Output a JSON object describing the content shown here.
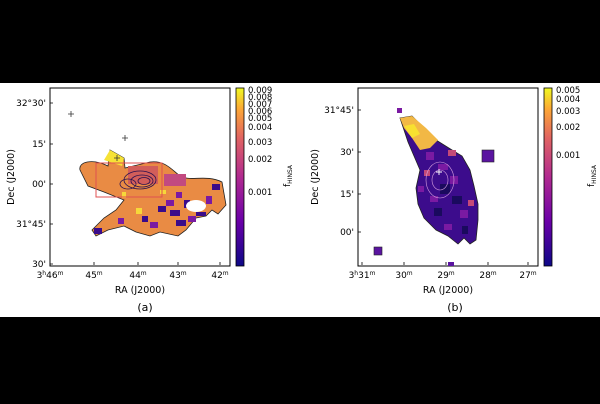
{
  "chart_data": [
    {
      "type": "heatmap",
      "panel_label": "(a)",
      "xlabel": "RA (J2000)",
      "ylabel": "Dec (J2000)",
      "x_ticks": [
        "3h46m",
        "45m",
        "44m",
        "43m",
        "42m"
      ],
      "y_ticks": [
        "32°30'",
        "15'",
        "00'",
        "31°45'",
        "30'"
      ],
      "colorbar": {
        "label": "f_HINSA",
        "ticks": [
          "0.009",
          "0.008",
          "0.007",
          "0.006",
          "0.005",
          "0.004",
          "0.003",
          "0.002",
          "0.001"
        ],
        "scale": "log",
        "colormap": "plasma"
      },
      "markers": [
        "+",
        "+",
        "+"
      ],
      "overlay": "red rectangle with black contour lines"
    },
    {
      "type": "heatmap",
      "panel_label": "(b)",
      "xlabel": "RA (J2000)",
      "ylabel": "Dec (J2000)",
      "x_ticks": [
        "3h31m",
        "30m",
        "29m",
        "28m",
        "27m"
      ],
      "y_ticks": [
        "31°45'",
        "30'",
        "15'",
        "00'"
      ],
      "colorbar": {
        "label": "f_HINSA",
        "ticks": [
          "0.005",
          "0.004",
          "0.003",
          "0.002",
          "0.001"
        ],
        "scale": "log",
        "colormap": "plasma"
      },
      "markers": [
        "+"
      ],
      "overlay": "black contour lines"
    }
  ],
  "colors": {
    "background": "#000000",
    "panel": "#ffffff",
    "dark": "#1a0a5e",
    "purple": "#5c12a0",
    "orange": "#e87a3a",
    "yellow": "#f8e830",
    "box": "#e05050"
  }
}
